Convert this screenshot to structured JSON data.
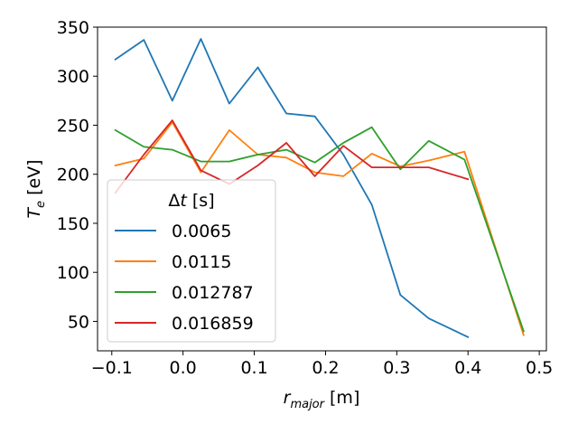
{
  "chart_data": {
    "type": "line",
    "title": "",
    "xlabel_main": "r",
    "xlabel_sub": "major",
    "xlabel_unit": " [m]",
    "ylabel_main": "T",
    "ylabel_sub": "e",
    "ylabel_unit": " [eV]",
    "xlim": [
      -0.12,
      0.51
    ],
    "ylim": [
      20,
      350
    ],
    "xticks": [
      -0.1,
      0.0,
      0.1,
      0.2,
      0.3,
      0.4,
      0.5
    ],
    "xtick_labels": [
      "−0.1",
      "0.0",
      "0.1",
      "0.2",
      "0.3",
      "0.4",
      "0.5"
    ],
    "yticks": [
      50,
      100,
      150,
      200,
      250,
      300,
      350
    ],
    "ytick_labels": [
      "50",
      "100",
      "150",
      "200",
      "250",
      "300",
      "350"
    ],
    "grid": false,
    "legend": {
      "title_symbol": "Δ",
      "title_var": "t",
      "title_unit": " [s]",
      "placement": "lower-left"
    },
    "series": [
      {
        "name": "0.0065",
        "color": "#1f77b4",
        "x": [
          -0.095,
          -0.055,
          -0.015,
          0.025,
          0.065,
          0.105,
          0.145,
          0.185,
          0.225,
          0.265,
          0.305,
          0.345,
          0.4
        ],
        "y": [
          317,
          337,
          275,
          338,
          272,
          309,
          262,
          259,
          220,
          169,
          77,
          53,
          34
        ]
      },
      {
        "name": "0.0115",
        "color": "#ff7f0e",
        "x": [
          -0.095,
          -0.055,
          -0.015,
          0.025,
          0.065,
          0.105,
          0.145,
          0.185,
          0.225,
          0.265,
          0.305,
          0.345,
          0.395,
          0.478
        ],
        "y": [
          209,
          216,
          253,
          202,
          245,
          220,
          217,
          202,
          198,
          221,
          208,
          214,
          223,
          36
        ]
      },
      {
        "name": "0.012787",
        "color": "#2ca02c",
        "x": [
          -0.095,
          -0.055,
          -0.015,
          0.025,
          0.065,
          0.105,
          0.145,
          0.185,
          0.225,
          0.265,
          0.305,
          0.345,
          0.395,
          0.478
        ],
        "y": [
          245,
          228,
          225,
          213,
          213,
          220,
          225,
          212,
          232,
          248,
          205,
          234,
          215,
          40
        ]
      },
      {
        "name": "0.016859",
        "color": "#d62728",
        "x": [
          -0.095,
          -0.055,
          -0.015,
          0.025,
          0.065,
          0.105,
          0.145,
          0.185,
          0.225,
          0.265,
          0.305,
          0.345,
          0.4
        ],
        "y": [
          181,
          220,
          255,
          204,
          190,
          209,
          232,
          198,
          229,
          207,
          207,
          207,
          195
        ]
      }
    ]
  }
}
